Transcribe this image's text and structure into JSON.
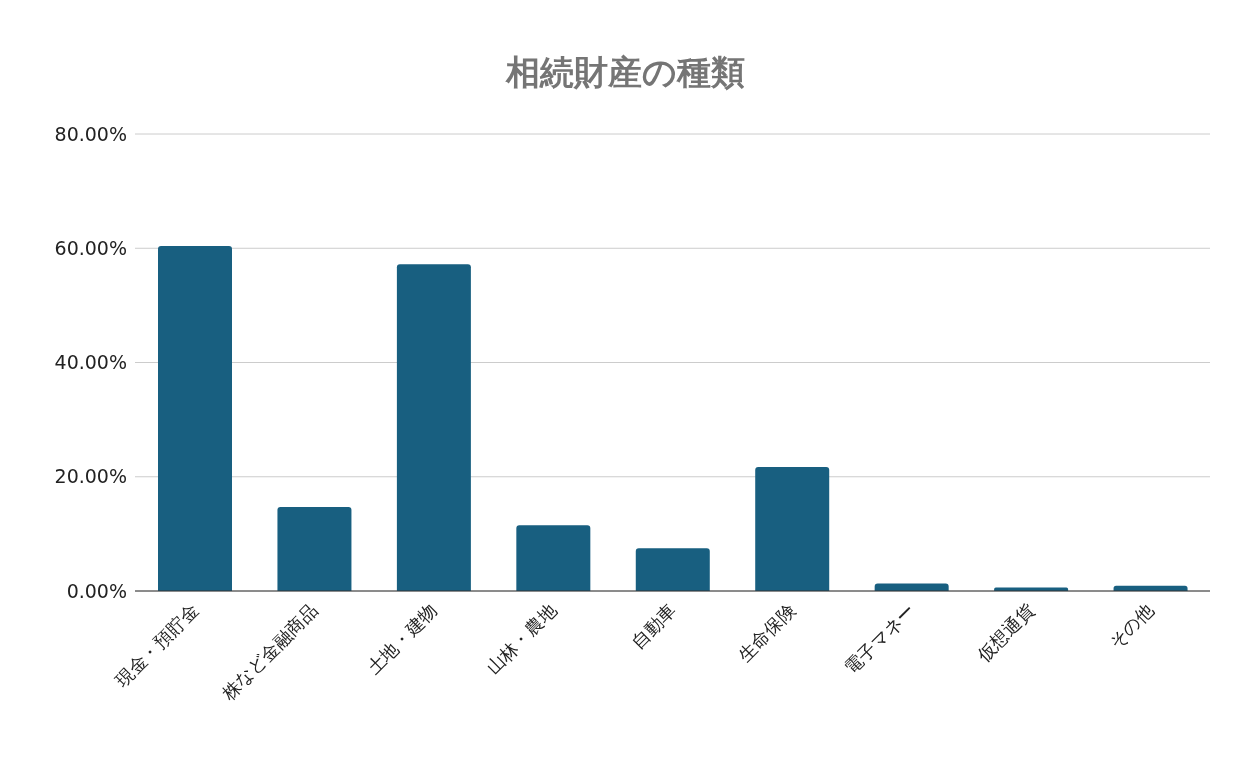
{
  "chart_data": {
    "type": "bar",
    "title": "相続財産の種類",
    "categories": [
      "現金・預貯金",
      "株など金融商品",
      "土地・建物",
      "山林・農地",
      "自動車",
      "生命保険",
      "電子マネー",
      "仮想通貨",
      "その他"
    ],
    "values": [
      60.4,
      14.7,
      57.2,
      11.5,
      7.5,
      21.7,
      1.3,
      0.6,
      0.9
    ],
    "color": "#185f80",
    "ylim": [
      0,
      80
    ],
    "yticks": [
      {
        "value": 0,
        "label": "0.00%"
      },
      {
        "value": 20,
        "label": "20.00%"
      },
      {
        "value": 40,
        "label": "40.00%"
      },
      {
        "value": 60,
        "label": "60.00%"
      },
      {
        "value": 80,
        "label": "80.00%"
      }
    ],
    "grid": "y",
    "legend": false
  }
}
